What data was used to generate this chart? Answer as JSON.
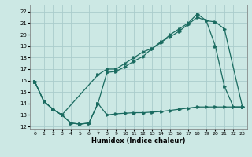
{
  "xlabel": "Humidex (Indice chaleur)",
  "bg_color": "#cce8e4",
  "grid_color": "#aacccc",
  "line_color": "#1a6b60",
  "xlim": [
    -0.5,
    23.5
  ],
  "ylim": [
    11.8,
    22.6
  ],
  "xticks": [
    0,
    1,
    2,
    3,
    4,
    5,
    6,
    7,
    8,
    9,
    10,
    11,
    12,
    13,
    14,
    15,
    16,
    17,
    18,
    19,
    20,
    21,
    22,
    23
  ],
  "yticks": [
    12,
    13,
    14,
    15,
    16,
    17,
    18,
    19,
    20,
    21,
    22
  ],
  "line1_x": [
    0,
    1,
    2,
    3,
    4,
    5,
    6,
    7,
    8,
    9,
    10,
    11,
    12,
    13,
    14,
    15,
    16,
    17,
    18,
    19,
    20,
    21,
    22,
    23
  ],
  "line1_y": [
    15.9,
    14.2,
    13.5,
    13.0,
    12.3,
    12.2,
    12.3,
    14.0,
    16.7,
    16.8,
    17.2,
    17.7,
    18.1,
    18.8,
    19.3,
    20.0,
    20.5,
    21.0,
    21.8,
    21.2,
    19.0,
    15.5,
    13.7,
    13.7
  ],
  "line2_x": [
    0,
    1,
    2,
    3,
    7,
    8,
    9,
    10,
    11,
    12,
    13,
    14,
    15,
    16,
    17,
    18,
    19,
    20,
    21,
    23
  ],
  "line2_y": [
    15.9,
    14.2,
    13.5,
    13.0,
    16.5,
    17.0,
    17.0,
    17.5,
    18.0,
    18.5,
    18.8,
    19.4,
    19.8,
    20.3,
    20.9,
    21.5,
    21.2,
    21.1,
    20.5,
    13.7
  ],
  "line3_x": [
    0,
    1,
    2,
    3,
    4,
    5,
    6,
    7,
    8,
    9,
    10,
    11,
    12,
    13,
    14,
    15,
    16,
    17,
    18,
    19,
    20,
    21,
    22,
    23
  ],
  "line3_y": [
    15.9,
    14.2,
    13.5,
    13.0,
    12.3,
    12.2,
    12.3,
    14.0,
    13.0,
    13.1,
    13.15,
    13.2,
    13.2,
    13.25,
    13.3,
    13.4,
    13.5,
    13.6,
    13.7,
    13.7,
    13.7,
    13.7,
    13.7,
    13.7
  ]
}
